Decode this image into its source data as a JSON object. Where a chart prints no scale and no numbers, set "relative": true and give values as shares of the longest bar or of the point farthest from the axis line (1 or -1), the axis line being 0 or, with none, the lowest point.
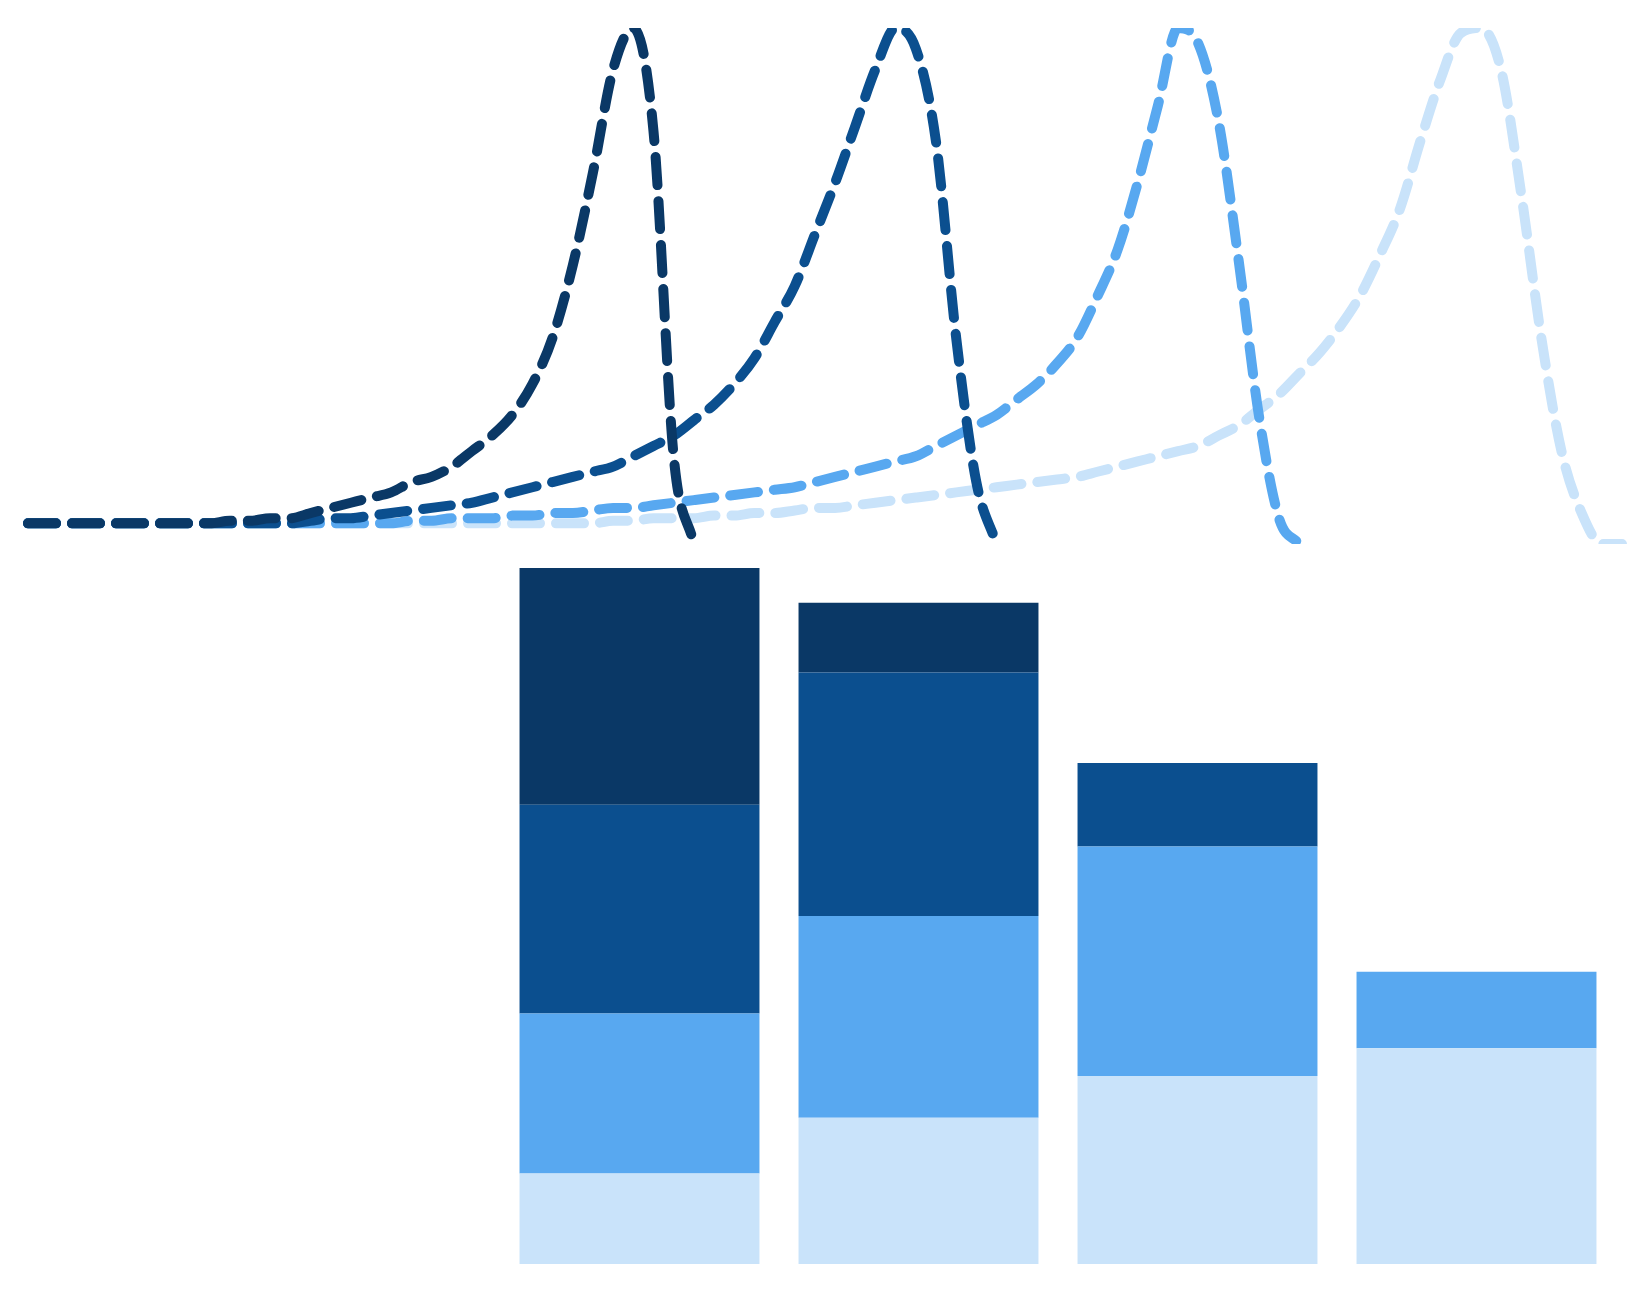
{
  "chart_data": [
    {
      "type": "line",
      "relative": true,
      "line_style": "dashed",
      "marker": "none",
      "legend": false,
      "tick_labels": false,
      "categories": [
        null,
        null,
        null,
        null,
        null,
        null,
        null,
        null,
        null,
        null,
        null,
        null,
        null,
        null,
        null,
        null,
        null,
        null,
        null,
        null,
        null,
        null,
        null,
        null,
        null,
        null,
        null,
        null,
        null,
        null,
        null,
        null,
        null,
        null,
        null,
        null,
        null,
        null,
        null,
        null,
        null,
        null,
        null,
        null,
        null,
        null,
        null,
        null,
        null,
        null,
        null,
        null,
        null,
        null,
        null,
        null,
        null,
        null,
        null,
        null,
        null,
        null,
        null,
        null,
        null,
        null,
        null,
        null,
        null,
        null,
        null,
        null,
        null,
        null,
        null,
        null,
        null,
        null,
        null,
        null
      ],
      "series": [
        {
          "color": "#0a3866",
          "values": [
            0.04,
            0.04,
            0.04,
            0.04,
            0.04,
            0.04,
            0.04,
            0.04,
            0.04,
            0.04,
            0.045,
            0.045,
            0.05,
            0.05,
            0.06,
            0.07,
            0.08,
            0.09,
            0.1,
            0.12,
            0.13,
            0.15,
            0.18,
            0.21,
            0.25,
            0.31,
            0.4,
            0.54,
            0.72,
            0.92,
            1,
            0.8,
            0.17,
            0,
            null,
            null,
            null,
            null,
            null,
            null,
            null,
            null,
            null,
            null,
            null,
            null,
            null,
            null,
            null,
            null,
            null,
            null,
            null,
            null,
            null,
            null,
            null,
            null,
            null,
            null,
            null,
            null,
            null,
            null,
            null,
            null,
            null,
            null,
            null,
            null,
            null,
            null,
            null,
            null,
            null,
            null,
            null,
            null,
            null,
            null
          ]
        },
        {
          "color": "#0b4f8f",
          "values": [
            0.04,
            0.04,
            0.04,
            0.04,
            0.04,
            0.04,
            0.04,
            0.04,
            0.04,
            0.04,
            0.04,
            0.04,
            0.04,
            0.04,
            0.045,
            0.05,
            0.05,
            0.055,
            0.06,
            0.065,
            0.07,
            0.075,
            0.08,
            0.09,
            0.1,
            0.11,
            0.12,
            0.13,
            0.14,
            0.15,
            0.17,
            0.19,
            0.21,
            0.24,
            0.27,
            0.31,
            0.36,
            0.43,
            0.5,
            0.6,
            0.7,
            0.81,
            0.92,
            1,
            0.96,
            0.78,
            0.4,
            0.12,
            0,
            null,
            null,
            null,
            null,
            null,
            null,
            null,
            null,
            null,
            null,
            null,
            null,
            null,
            null,
            null,
            null,
            null,
            null,
            null,
            null,
            null,
            null,
            null,
            null,
            null,
            null,
            null,
            null,
            null,
            null,
            null
          ]
        },
        {
          "color": "#58a8f0",
          "values": [
            0.04,
            0.04,
            0.04,
            0.04,
            0.04,
            0.04,
            0.04,
            0.04,
            0.04,
            0.04,
            0.04,
            0.04,
            0.04,
            0.04,
            0.04,
            0.04,
            0.04,
            0.04,
            0.04,
            0.045,
            0.045,
            0.05,
            0.05,
            0.05,
            0.055,
            0.055,
            0.06,
            0.06,
            0.065,
            0.07,
            0.07,
            0.075,
            0.08,
            0.085,
            0.09,
            0.095,
            0.1,
            0.105,
            0.11,
            0.12,
            0.13,
            0.14,
            0.15,
            0.16,
            0.17,
            0.19,
            0.21,
            0.23,
            0.25,
            0.28,
            0.31,
            0.35,
            0.4,
            0.48,
            0.57,
            0.7,
            0.85,
            1,
            0.97,
            0.82,
            0.55,
            0.25,
            0.05,
            0,
            null,
            null,
            null,
            null,
            null,
            null,
            null,
            null,
            null,
            null,
            null,
            null,
            null,
            null,
            null,
            null
          ]
        },
        {
          "color": "#c9e3fa",
          "values": [
            0.04,
            0.04,
            0.04,
            0.04,
            0.04,
            0.04,
            0.04,
            0.04,
            0.04,
            0.04,
            0.04,
            0.04,
            0.04,
            0.04,
            0.04,
            0.04,
            0.04,
            0.04,
            0.04,
            0.04,
            0.04,
            0.04,
            0.04,
            0.04,
            0.04,
            0.04,
            0.04,
            0.04,
            0.04,
            0.045,
            0.045,
            0.05,
            0.05,
            0.05,
            0.055,
            0.055,
            0.06,
            0.06,
            0.065,
            0.07,
            0.07,
            0.075,
            0.08,
            0.085,
            0.09,
            0.095,
            0.1,
            0.105,
            0.11,
            0.115,
            0.12,
            0.125,
            0.13,
            0.14,
            0.15,
            0.16,
            0.17,
            0.18,
            0.19,
            0.21,
            0.23,
            0.26,
            0.29,
            0.33,
            0.37,
            0.42,
            0.48,
            0.56,
            0.65,
            0.78,
            0.9,
            0.99,
            1,
            0.92,
            0.68,
            0.4,
            0.18,
            0.06,
            0,
            0
          ]
        }
      ]
    },
    {
      "type": "bar",
      "relative": true,
      "stacked": true,
      "legend": false,
      "tick_labels": false,
      "categories": [
        null,
        null,
        null,
        null
      ],
      "series": [
        {
          "color": "#c9e3fa",
          "values": [
            0.13,
            0.21,
            0.27,
            0.31
          ]
        },
        {
          "color": "#58a8f0",
          "values": [
            0.23,
            0.29,
            0.33,
            0.11
          ]
        },
        {
          "color": "#0b4f8f",
          "values": [
            0.3,
            0.35,
            0.12,
            null
          ]
        },
        {
          "color": "#0a3866",
          "values": [
            0.34,
            0.1,
            null,
            null
          ]
        }
      ]
    }
  ]
}
